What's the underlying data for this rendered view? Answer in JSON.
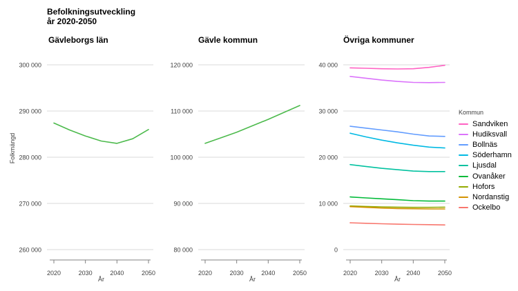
{
  "title": {
    "line1": "Befolkningsutveckling",
    "line2": "år 2020-2050"
  },
  "axes": {
    "y_label": "Folkmängd",
    "x_label": "År"
  },
  "style": {
    "grid_color": "#d9d9d9",
    "axis_color": "#808080",
    "tick_text_color": "#404040",
    "single_line_color": "#4cba4c"
  },
  "legend": {
    "title": "Kommun"
  },
  "chart_data": [
    {
      "type": "line",
      "title": "Gävleborgs län",
      "x": [
        2020,
        2025,
        2030,
        2035,
        2040,
        2045,
        2050
      ],
      "x_ticks": [
        2020,
        2030,
        2040,
        2050
      ],
      "xlabel": "År",
      "ylabel": "Folkmängd",
      "ylim": [
        260000,
        300000
      ],
      "ytick_step": 10000,
      "grid": true,
      "series": [
        {
          "name": "Gävleborgs län",
          "color": "#4cba4c",
          "values": [
            287400,
            285900,
            284600,
            283500,
            283000,
            284000,
            286000
          ]
        }
      ]
    },
    {
      "type": "line",
      "title": "Gävle kommun",
      "x": [
        2020,
        2025,
        2030,
        2035,
        2040,
        2045,
        2050
      ],
      "x_ticks": [
        2020,
        2030,
        2040,
        2050
      ],
      "xlabel": "År",
      "ylim": [
        80000,
        120000
      ],
      "ytick_step": 10000,
      "grid": true,
      "series": [
        {
          "name": "Gävle kommun",
          "color": "#4cba4c",
          "values": [
            103000,
            104200,
            105400,
            106800,
            108200,
            109700,
            111200
          ]
        }
      ]
    },
    {
      "type": "line",
      "title": "Övriga kommuner",
      "x": [
        2020,
        2025,
        2030,
        2035,
        2040,
        2045,
        2050
      ],
      "x_ticks": [
        2020,
        2030,
        2040,
        2050
      ],
      "xlabel": "År",
      "ylim": [
        0,
        40000
      ],
      "ytick_step": 10000,
      "grid": true,
      "legend_title": "Kommun",
      "legend_position": "right",
      "series": [
        {
          "name": "Sandviken",
          "color": "#FF61C3",
          "values": [
            39350,
            39250,
            39150,
            39100,
            39150,
            39450,
            39900
          ]
        },
        {
          "name": "Hudiksvall",
          "color": "#DB72FB",
          "values": [
            37500,
            37100,
            36700,
            36400,
            36200,
            36150,
            36200
          ]
        },
        {
          "name": "Bollnäs",
          "color": "#619CFF",
          "values": [
            26700,
            26300,
            25900,
            25500,
            25000,
            24600,
            24500
          ]
        },
        {
          "name": "Söderhamn",
          "color": "#00B9E3",
          "values": [
            25200,
            24400,
            23700,
            23100,
            22600,
            22200,
            22000
          ]
        },
        {
          "name": "Ljusdal",
          "color": "#00C19F",
          "values": [
            18400,
            18000,
            17600,
            17300,
            17000,
            16900,
            16900
          ]
        },
        {
          "name": "Ovanåker",
          "color": "#00BA38",
          "values": [
            11400,
            11200,
            11000,
            10800,
            10600,
            10500,
            10500
          ]
        },
        {
          "name": "Hofors",
          "color": "#93AA00",
          "values": [
            9450,
            9350,
            9250,
            9200,
            9150,
            9150,
            9200
          ]
        },
        {
          "name": "Nordanstig",
          "color": "#D39200",
          "values": [
            9300,
            9150,
            9000,
            8900,
            8850,
            8800,
            8800
          ]
        },
        {
          "name": "Ockelbo",
          "color": "#F8766D",
          "values": [
            5800,
            5700,
            5600,
            5500,
            5450,
            5400,
            5350
          ]
        }
      ]
    }
  ]
}
